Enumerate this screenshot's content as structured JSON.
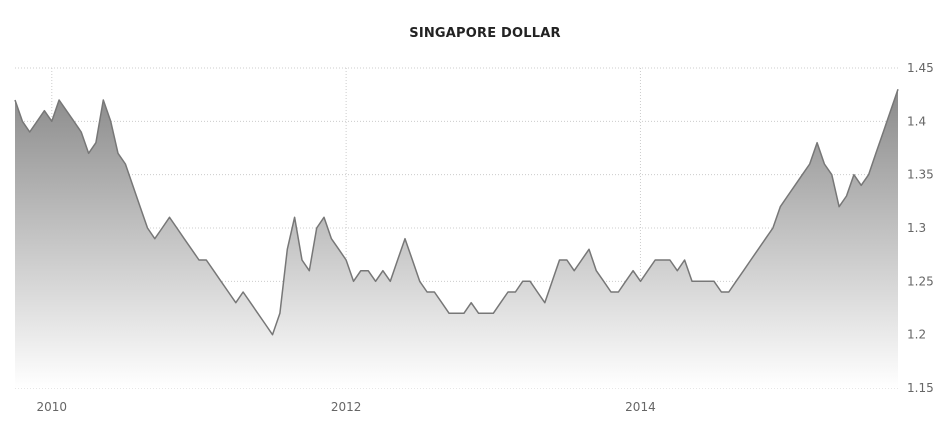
{
  "chart_data": {
    "type": "area",
    "title": "SINGAPORE DOLLAR",
    "xlabel": "",
    "ylabel": "",
    "y_ticks": [
      "1.15",
      "1.2",
      "1.25",
      "1.3",
      "1.35",
      "1.4",
      "1.45"
    ],
    "ylim": [
      1.15,
      1.45
    ],
    "x_ticks": [
      "2010",
      "2012",
      "2014"
    ],
    "xlim": [
      2009.75,
      2015.75
    ],
    "grid": true,
    "series": [
      {
        "x": [
          2009.75,
          2009.8,
          2009.85,
          2009.9,
          2009.95,
          2010.0,
          2010.05,
          2010.1,
          2010.15,
          2010.2,
          2010.25,
          2010.3,
          2010.35,
          2010.4,
          2010.45,
          2010.5,
          2010.55,
          2010.6,
          2010.65,
          2010.7,
          2010.75,
          2010.8,
          2010.85,
          2010.9,
          2010.95,
          2011.0,
          2011.05,
          2011.1,
          2011.15,
          2011.2,
          2011.25,
          2011.3,
          2011.35,
          2011.4,
          2011.45,
          2011.5,
          2011.55,
          2011.6,
          2011.65,
          2011.7,
          2011.75,
          2011.8,
          2011.85,
          2011.9,
          2011.95,
          2012.0,
          2012.05,
          2012.1,
          2012.15,
          2012.2,
          2012.25,
          2012.3,
          2012.35,
          2012.4,
          2012.45,
          2012.5,
          2012.55,
          2012.6,
          2012.65,
          2012.7,
          2012.75,
          2012.8,
          2012.85,
          2012.9,
          2012.95,
          2013.0,
          2013.05,
          2013.1,
          2013.15,
          2013.2,
          2013.25,
          2013.3,
          2013.35,
          2013.4,
          2013.45,
          2013.5,
          2013.55,
          2013.6,
          2013.65,
          2013.7,
          2013.75,
          2013.8,
          2013.85,
          2013.9,
          2013.95,
          2014.0,
          2014.05,
          2014.1,
          2014.15,
          2014.2,
          2014.25,
          2014.3,
          2014.35,
          2014.4,
          2014.45,
          2014.5,
          2014.55,
          2014.6,
          2014.65,
          2014.7,
          2014.75,
          2014.8,
          2014.85,
          2014.9,
          2014.95,
          2015.0,
          2015.05,
          2015.1,
          2015.15,
          2015.2,
          2015.25,
          2015.3,
          2015.35,
          2015.4,
          2015.45,
          2015.5,
          2015.55,
          2015.6,
          2015.65,
          2015.7,
          2015.75
        ],
        "y": [
          1.42,
          1.4,
          1.39,
          1.4,
          1.41,
          1.4,
          1.42,
          1.41,
          1.4,
          1.39,
          1.37,
          1.38,
          1.42,
          1.4,
          1.37,
          1.36,
          1.34,
          1.32,
          1.3,
          1.29,
          1.3,
          1.31,
          1.3,
          1.29,
          1.28,
          1.27,
          1.27,
          1.26,
          1.25,
          1.24,
          1.23,
          1.24,
          1.23,
          1.22,
          1.21,
          1.2,
          1.22,
          1.28,
          1.31,
          1.27,
          1.26,
          1.3,
          1.31,
          1.29,
          1.28,
          1.27,
          1.25,
          1.26,
          1.26,
          1.25,
          1.26,
          1.25,
          1.27,
          1.29,
          1.27,
          1.25,
          1.24,
          1.24,
          1.23,
          1.22,
          1.22,
          1.22,
          1.23,
          1.22,
          1.22,
          1.22,
          1.23,
          1.24,
          1.24,
          1.25,
          1.25,
          1.24,
          1.23,
          1.25,
          1.27,
          1.27,
          1.26,
          1.27,
          1.28,
          1.26,
          1.25,
          1.24,
          1.24,
          1.25,
          1.26,
          1.25,
          1.26,
          1.27,
          1.27,
          1.27,
          1.26,
          1.27,
          1.25,
          1.25,
          1.25,
          1.25,
          1.24,
          1.24,
          1.25,
          1.26,
          1.27,
          1.28,
          1.29,
          1.3,
          1.32,
          1.33,
          1.34,
          1.35,
          1.36,
          1.38,
          1.36,
          1.35,
          1.32,
          1.33,
          1.35,
          1.34,
          1.35,
          1.37,
          1.39,
          1.41,
          1.43
        ]
      }
    ],
    "colors": {
      "line": "#777777",
      "fill_top": "#8a8a8a",
      "fill_bottom": "#ffffff",
      "grid": "#cccccc",
      "tick_text": "#666666",
      "title_text": "#222222"
    }
  }
}
